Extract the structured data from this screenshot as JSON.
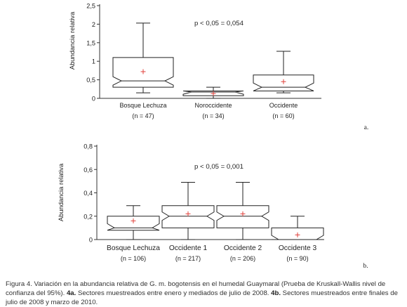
{
  "chart_data": [
    {
      "type": "boxplot",
      "panel_label": "a.",
      "ylabel": "Abundancia relativa",
      "ylim": [
        0,
        2.5
      ],
      "yticks": [
        "0",
        "0,5",
        "1",
        "1,5",
        "2",
        "2,5"
      ],
      "annotation": "p < 0,05 = 0,054",
      "categories": [
        "Bosque Lechuza",
        "Noroccidente",
        "Occidente"
      ],
      "n_labels": [
        "(n = 47)",
        "(n = 34)",
        "(n = 60)"
      ],
      "boxes": [
        {
          "min": 0.15,
          "q1": 0.3,
          "median": 0.47,
          "q3": 1.1,
          "max": 2.03,
          "mean": 0.72
        },
        {
          "min": 0.0,
          "q1": 0.07,
          "median": 0.17,
          "q3": 0.2,
          "max": 0.3,
          "mean": 0.13
        },
        {
          "min": 0.15,
          "q1": 0.2,
          "median": 0.3,
          "q3": 0.63,
          "max": 1.27,
          "mean": 0.45
        }
      ]
    },
    {
      "type": "boxplot",
      "panel_label": "b.",
      "ylabel": "Abundancia relativa",
      "ylim": [
        0,
        0.8
      ],
      "yticks": [
        "0",
        "0,2",
        "0,4",
        "0,6",
        "0,8"
      ],
      "annotation": "p < 0,05 = 0,001",
      "categories": [
        "Bosque Lechuza",
        "Occidente 1",
        "Occidente 2",
        "Occidente 3"
      ],
      "n_labels": [
        "(n = 106)",
        "(n = 217)",
        "(n = 206)",
        "(n = 90)"
      ],
      "boxes": [
        {
          "min": 0.0,
          "q1": 0.08,
          "median": 0.1,
          "q3": 0.2,
          "max": 0.29,
          "mean": 0.16
        },
        {
          "min": 0.0,
          "q1": 0.1,
          "median": 0.2,
          "q3": 0.29,
          "max": 0.49,
          "mean": 0.22
        },
        {
          "min": 0.0,
          "q1": 0.1,
          "median": 0.2,
          "q3": 0.29,
          "max": 0.49,
          "mean": 0.22
        },
        {
          "min": 0.0,
          "q1": 0.0,
          "median": 0.0,
          "q3": 0.1,
          "max": 0.2,
          "mean": 0.04
        }
      ]
    }
  ],
  "caption": {
    "text1": "Figura 4. Variación en la abundancia relativa de G. m. bogotensis en el humedal Guaymaral (Prueba de Kruskall-Wallis nivel de confianza del 95%). ",
    "bold1": "4a.",
    "text2": " Sectores muestreados entre enero y mediados de julio de 2008. ",
    "bold2": "4b.",
    "text3": " Sectores muestreados entre finales de julio de 2008 y marzo de 2010."
  },
  "colors": {
    "mean_marker": "#e0403a",
    "axis": "#333333",
    "box": "#222222"
  }
}
